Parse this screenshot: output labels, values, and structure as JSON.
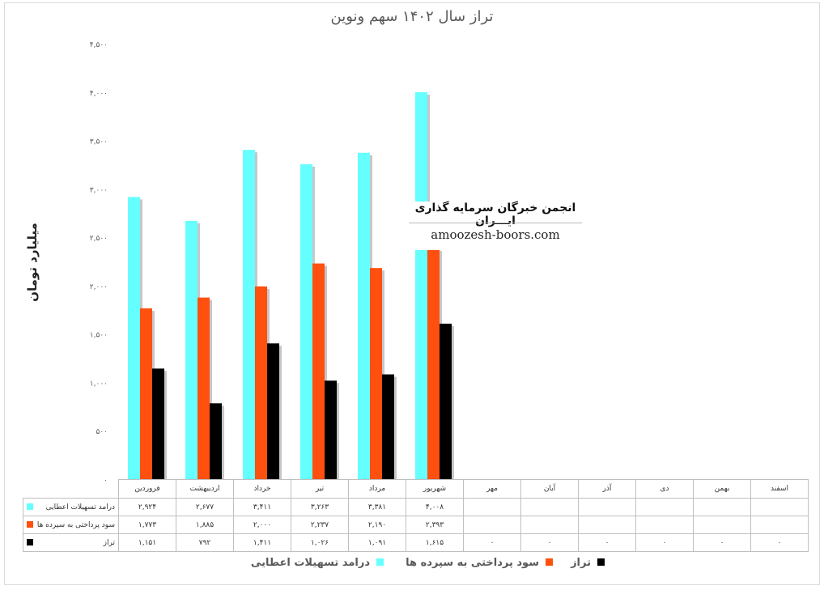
{
  "chart_data": {
    "type": "bar",
    "title": "تراز سال ۱۴۰۲ سهم ونوین",
    "ylabel": "میلیارد تومان",
    "ylim": [
      0,
      4500
    ],
    "yticks": [
      {
        "value": 0,
        "label": "۰"
      },
      {
        "value": 500,
        "label": "۵۰۰"
      },
      {
        "value": 1000,
        "label": "۱,۰۰۰"
      },
      {
        "value": 1500,
        "label": "۱,۵۰۰"
      },
      {
        "value": 2000,
        "label": "۲,۰۰۰"
      },
      {
        "value": 2500,
        "label": "۲,۵۰۰"
      },
      {
        "value": 3000,
        "label": "۳,۰۰۰"
      },
      {
        "value": 3500,
        "label": "۳,۵۰۰"
      },
      {
        "value": 4000,
        "label": "۴,۰۰۰"
      },
      {
        "value": 4500,
        "label": "۴,۵۰۰"
      }
    ],
    "categories": [
      "فروردین",
      "اردیبهشت",
      "خرداد",
      "تیر",
      "مرداد",
      "شهریور",
      "مهر",
      "آبان",
      "آذر",
      "دی",
      "بهمن",
      "اسفند"
    ],
    "series": [
      {
        "name": "درامد تسهیلات اعطایی",
        "color": "#66ffff",
        "values": [
          2924,
          2677,
          3411,
          3263,
          3381,
          4008,
          null,
          null,
          null,
          null,
          null,
          null
        ],
        "labels": [
          "۲,۹۲۴",
          "۲,۶۷۷",
          "۳,۴۱۱",
          "۳,۲۶۳",
          "۳,۳۸۱",
          "۴,۰۰۸",
          "",
          "",
          "",
          "",
          "",
          ""
        ]
      },
      {
        "name": "سود پرداختی به سپرده ها",
        "color": "#ff5010",
        "values": [
          1773,
          1885,
          2000,
          2237,
          2190,
          2393,
          null,
          null,
          null,
          null,
          null,
          null
        ],
        "labels": [
          "۱,۷۷۳",
          "۱,۸۸۵",
          "۲,۰۰۰",
          "۲,۲۳۷",
          "۲,۱۹۰",
          "۲,۳۹۳",
          "",
          "",
          "",
          "",
          "",
          ""
        ]
      },
      {
        "name": "تراز",
        "color": "#000000",
        "values": [
          1151,
          792,
          1411,
          1026,
          1091,
          1615,
          0,
          0,
          0,
          0,
          0,
          0
        ],
        "labels": [
          "۱,۱۵۱",
          "۷۹۲",
          "۱,۴۱۱",
          "۱,۰۲۶",
          "۱,۰۹۱",
          "۱,۶۱۵",
          "۰",
          "۰",
          "۰",
          "۰",
          "۰",
          "۰"
        ]
      }
    ],
    "legend_position": "bottom",
    "grid": false,
    "data_table": true
  },
  "watermark": {
    "title": "انجمن خبرگان سرمایه گذاری ایـــران",
    "url": "amoozesh-boors.com"
  }
}
